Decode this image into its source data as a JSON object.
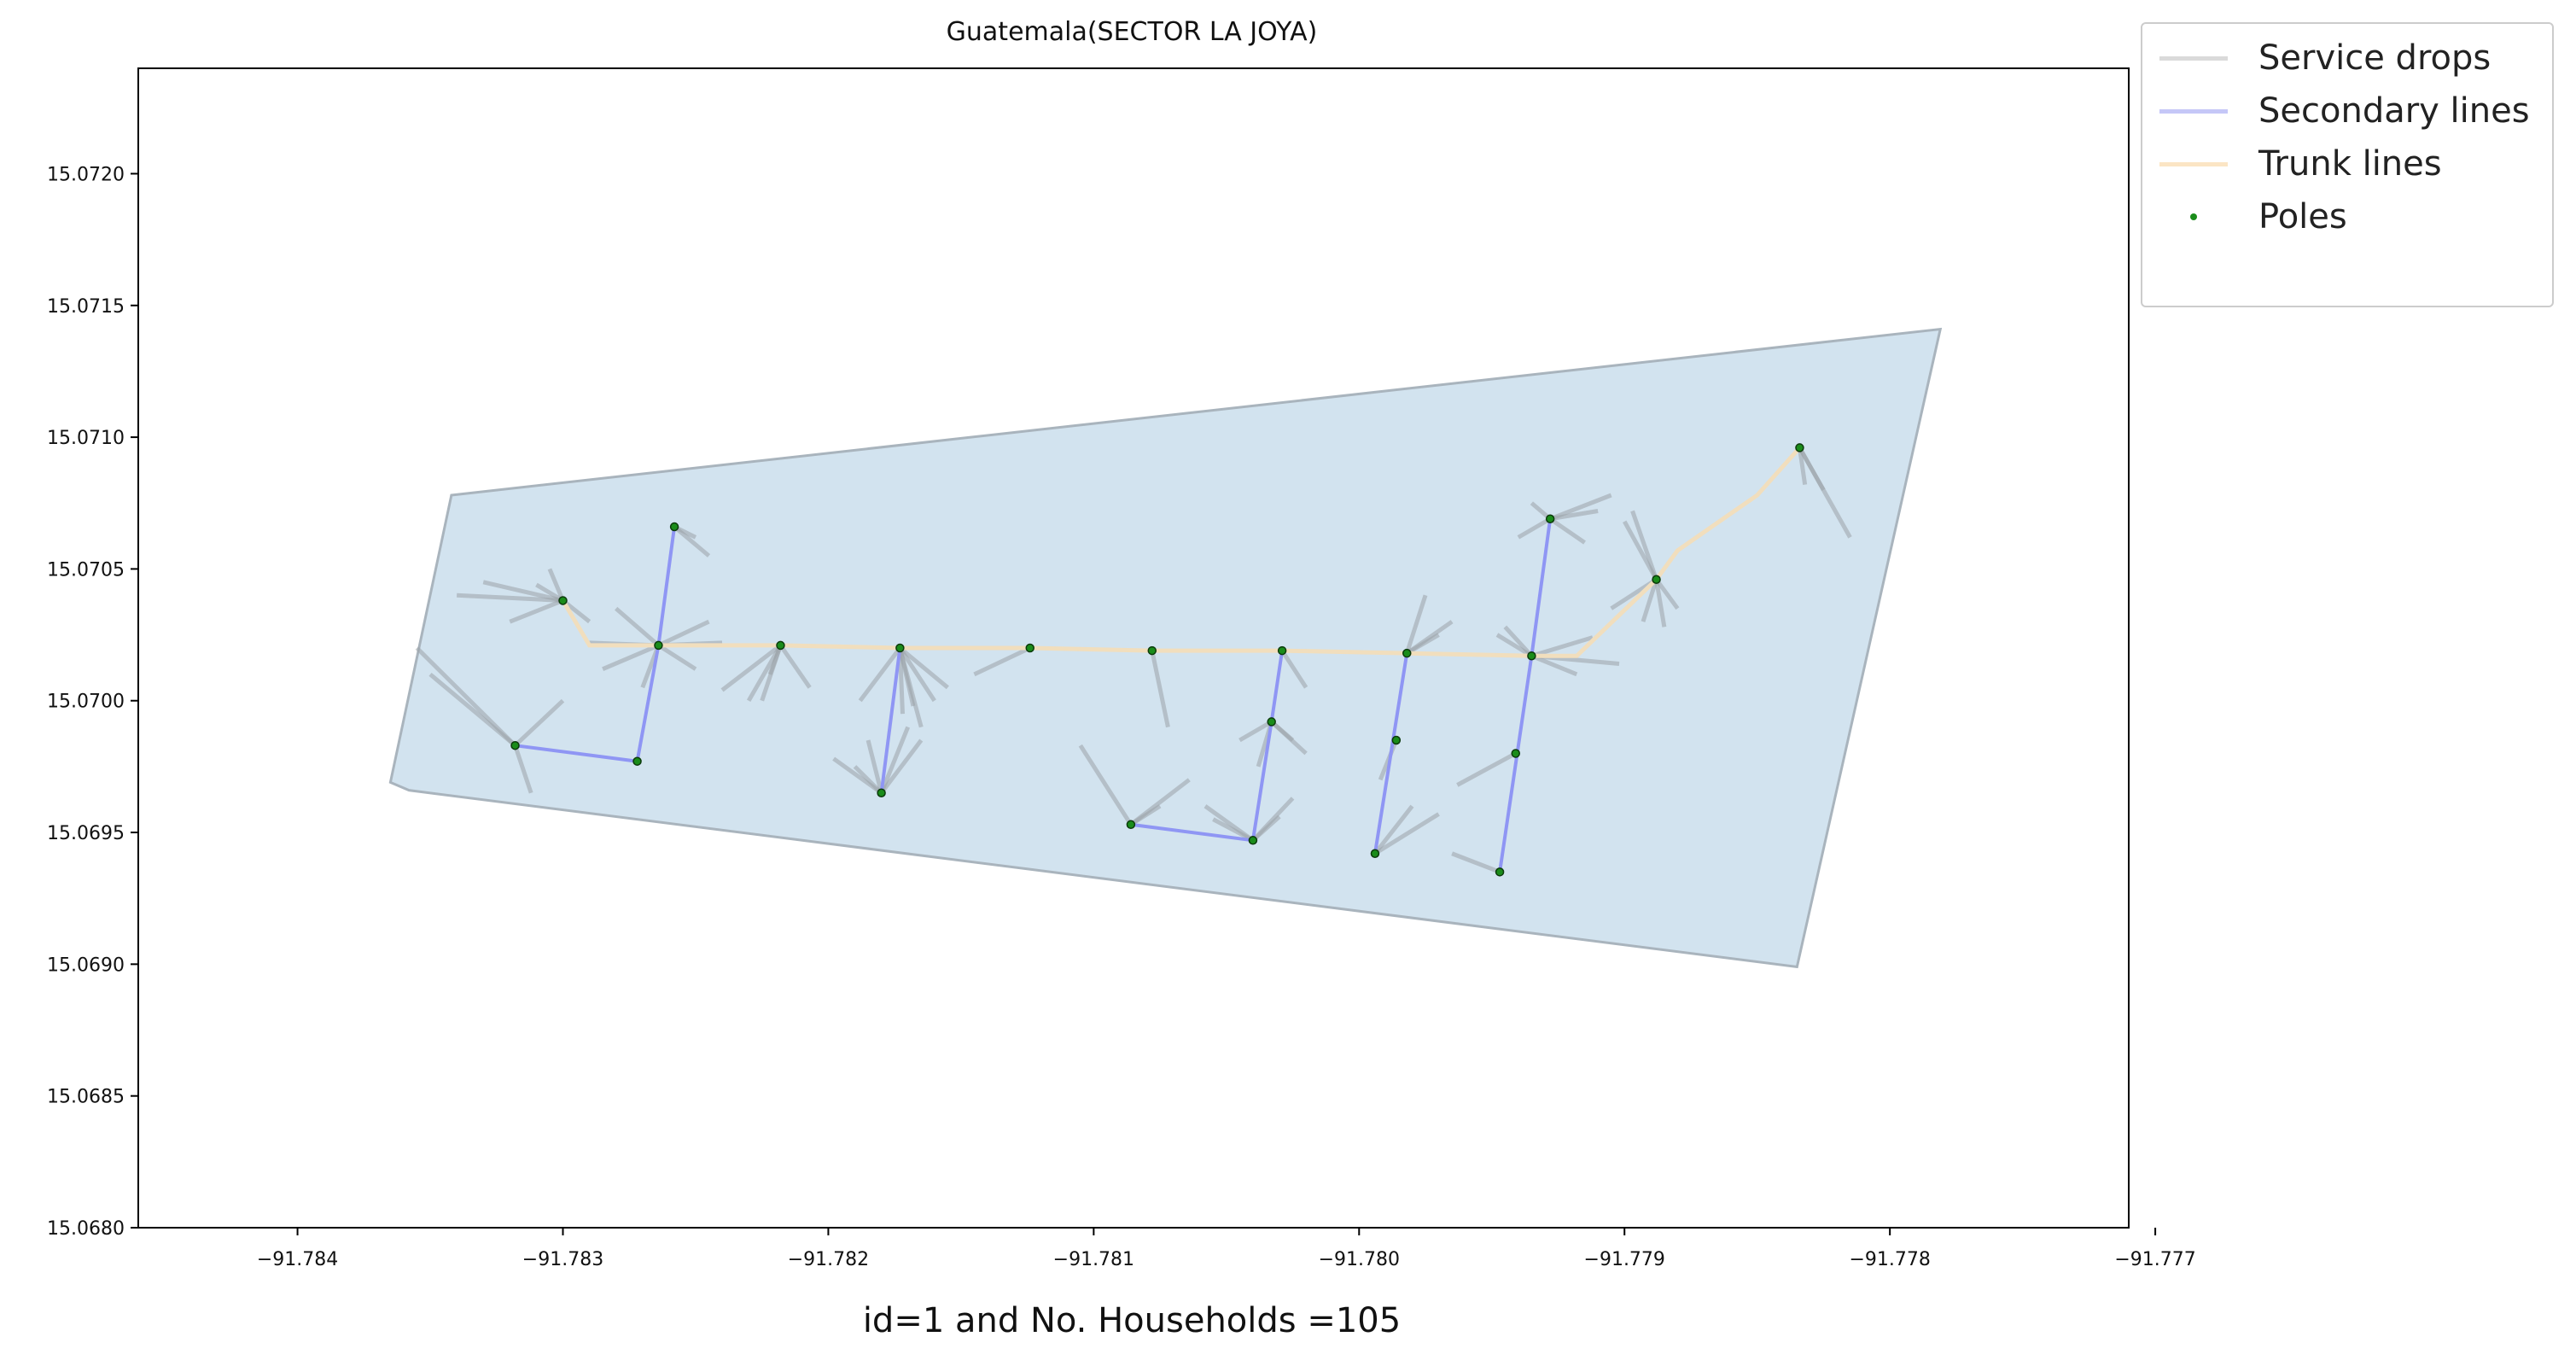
{
  "chart_data": {
    "type": "map-lines",
    "title": "Guatemala(SECTOR LA JOYA)",
    "footer": "id=1 and No. Households =105",
    "xlim": [
      -91.7846,
      -91.7771
    ],
    "ylim": [
      15.068,
      15.0724
    ],
    "x_ticks": [
      -91.784,
      -91.783,
      -91.782,
      -91.781,
      -91.78,
      -91.779,
      -91.778,
      -91.777
    ],
    "x_tick_labels": [
      "−91.784",
      "−91.783",
      "−91.782",
      "−91.781",
      "−91.780",
      "−91.779",
      "−91.778",
      "−91.777"
    ],
    "y_ticks": [
      15.068,
      15.0685,
      15.069,
      15.0695,
      15.07,
      15.0705,
      15.071,
      15.0715,
      15.072
    ],
    "y_tick_labels": [
      "15.0680",
      "15.0685",
      "15.0690",
      "15.0695",
      "15.0700",
      "15.0705",
      "15.0710",
      "15.0715",
      "15.0720"
    ],
    "grid": false,
    "legend_position": "outside-top-right",
    "colors": {
      "area_fill": "#d2e3ef",
      "area_edge": "#a9b4bd",
      "service": "#9ba3a8",
      "secondary": "#8f96f4",
      "trunk": "#f1debd",
      "pole": "#1a8c1a",
      "pole_edge": "#0b3a0b"
    },
    "legend": [
      {
        "label": "Service drops",
        "kind": "line",
        "color": "#d9d9d9"
      },
      {
        "label": "Secondary lines",
        "kind": "line",
        "color": "#c5c7f7"
      },
      {
        "label": "Trunk lines",
        "kind": "line",
        "color": "#fbe5c4"
      },
      {
        "label": "Poles",
        "kind": "point",
        "color": "#1a8c1a"
      }
    ],
    "area_polygon": [
      [
        -91.78342,
        15.07078
      ],
      [
        -91.78365,
        15.06969
      ],
      [
        -91.78358,
        15.06966
      ],
      [
        -91.77835,
        15.06899
      ],
      [
        -91.77781,
        15.07141
      ],
      [
        -91.78342,
        15.07078
      ]
    ],
    "trunk_line": [
      [
        -91.783,
        15.07038
      ],
      [
        -91.7829,
        15.07021
      ],
      [
        -91.78264,
        15.07021
      ],
      [
        -91.78218,
        15.07021
      ],
      [
        -91.78173,
        15.0702
      ],
      [
        -91.78124,
        15.0702
      ],
      [
        -91.78078,
        15.07019
      ],
      [
        -91.78029,
        15.07019
      ],
      [
        -91.77982,
        15.07018
      ],
      [
        -91.77935,
        15.07017
      ],
      [
        -91.77918,
        15.07017
      ],
      [
        -91.77888,
        15.07046
      ],
      [
        -91.7788,
        15.07057
      ],
      [
        -91.7785,
        15.07078
      ],
      [
        -91.77834,
        15.07096
      ]
    ],
    "secondary_lines": [
      [
        [
          -91.78318,
          15.06983
        ],
        [
          -91.78272,
          15.06977
        ],
        [
          -91.78264,
          15.07021
        ],
        [
          -91.78258,
          15.07066
        ]
      ],
      [
        [
          -91.78173,
          15.0702
        ],
        [
          -91.7818,
          15.06965
        ]
      ],
      [
        [
          -91.78086,
          15.06953
        ],
        [
          -91.7804,
          15.06947
        ],
        [
          -91.78033,
          15.06992
        ],
        [
          -91.78029,
          15.07019
        ]
      ],
      [
        [
          -91.77982,
          15.07018
        ],
        [
          -91.77994,
          15.06942
        ]
      ],
      [
        [
          -91.77935,
          15.07017
        ],
        [
          -91.77947,
          15.06935
        ]
      ],
      [
        [
          -91.77935,
          15.07017
        ],
        [
          -91.77928,
          15.07069
        ]
      ]
    ],
    "poles": [
      [
        -91.783,
        15.07038
      ],
      [
        -91.78264,
        15.07021
      ],
      [
        -91.78258,
        15.07066
      ],
      [
        -91.78218,
        15.07021
      ],
      [
        -91.78173,
        15.0702
      ],
      [
        -91.78124,
        15.0702
      ],
      [
        -91.78078,
        15.07019
      ],
      [
        -91.78029,
        15.07019
      ],
      [
        -91.77982,
        15.07018
      ],
      [
        -91.77935,
        15.07017
      ],
      [
        -91.77928,
        15.07069
      ],
      [
        -91.77888,
        15.07046
      ],
      [
        -91.77834,
        15.07096
      ],
      [
        -91.78318,
        15.06983
      ],
      [
        -91.78272,
        15.06977
      ],
      [
        -91.7818,
        15.06965
      ],
      [
        -91.78086,
        15.06953
      ],
      [
        -91.7804,
        15.06947
      ],
      [
        -91.78033,
        15.06992
      ],
      [
        -91.77986,
        15.06985
      ],
      [
        -91.77994,
        15.06942
      ],
      [
        -91.77941,
        15.0698
      ],
      [
        -91.77947,
        15.06935
      ]
    ],
    "service_drops": [
      [
        -91.783,
        15.07038,
        -91.7834,
        15.0704
      ],
      [
        -91.783,
        15.07038,
        -91.7833,
        15.07045
      ],
      [
        -91.783,
        15.07038,
        -91.78305,
        15.0705
      ],
      [
        -91.783,
        15.07038,
        -91.7832,
        15.0703
      ],
      [
        -91.783,
        15.07038,
        -91.7829,
        15.0703
      ],
      [
        -91.783,
        15.07038,
        -91.7831,
        15.07044
      ],
      [
        -91.78264,
        15.07021,
        -91.7828,
        15.07035
      ],
      [
        -91.78264,
        15.07021,
        -91.78245,
        15.0703
      ],
      [
        -91.78264,
        15.07021,
        -91.78285,
        15.07012
      ],
      [
        -91.78264,
        15.07021,
        -91.7824,
        15.07022
      ],
      [
        -91.78264,
        15.07021,
        -91.7827,
        15.07005
      ],
      [
        -91.78264,
        15.07021,
        -91.7825,
        15.07012
      ],
      [
        -91.78264,
        15.07021,
        -91.7829,
        15.07022
      ],
      [
        -91.78258,
        15.07066,
        -91.78245,
        15.07055
      ],
      [
        -91.78258,
        15.07066,
        -91.7825,
        15.07062
      ],
      [
        -91.78218,
        15.07021,
        -91.7824,
        15.07004
      ],
      [
        -91.78218,
        15.07021,
        -91.7823,
        15.07
      ],
      [
        -91.78218,
        15.07021,
        -91.78207,
        15.07005
      ],
      [
        -91.78218,
        15.07021,
        -91.78222,
        15.0701
      ],
      [
        -91.78218,
        15.07021,
        -91.78225,
        15.07
      ],
      [
        -91.78173,
        15.0702,
        -91.78188,
        15.07
      ],
      [
        -91.78173,
        15.0702,
        -91.7816,
        15.07
      ],
      [
        -91.78173,
        15.0702,
        -91.78172,
        15.06995
      ],
      [
        -91.78173,
        15.0702,
        -91.78155,
        15.07005
      ],
      [
        -91.78173,
        15.0702,
        -91.78168,
        15.06998
      ],
      [
        -91.78173,
        15.0702,
        -91.78165,
        15.0699
      ],
      [
        -91.78124,
        15.0702,
        -91.78145,
        15.0701
      ],
      [
        -91.78078,
        15.07019,
        -91.78072,
        15.0699
      ],
      [
        -91.7818,
        15.06965,
        -91.78198,
        15.06978
      ],
      [
        -91.7818,
        15.06965,
        -91.78185,
        15.06985
      ],
      [
        -91.7818,
        15.06965,
        -91.78165,
        15.06985
      ],
      [
        -91.7818,
        15.06965,
        -91.7819,
        15.06975
      ],
      [
        -91.7818,
        15.06965,
        -91.7817,
        15.0699
      ],
      [
        -91.78086,
        15.06953,
        -91.78105,
        15.06983
      ],
      [
        -91.78086,
        15.06953,
        -91.78064,
        15.0697
      ],
      [
        -91.78086,
        15.06953,
        -91.78075,
        15.0696
      ],
      [
        -91.7804,
        15.06947,
        -91.78058,
        15.0696
      ],
      [
        -91.7804,
        15.06947,
        -91.78025,
        15.06963
      ],
      [
        -91.7804,
        15.06947,
        -91.78055,
        15.06955
      ],
      [
        -91.7804,
        15.06947,
        -91.7803,
        15.06956
      ],
      [
        -91.78033,
        15.06992,
        -91.7802,
        15.0698
      ],
      [
        -91.78033,
        15.06992,
        -91.78025,
        15.06985
      ],
      [
        -91.78033,
        15.06992,
        -91.78045,
        15.06985
      ],
      [
        -91.78033,
        15.06992,
        -91.78038,
        15.06975
      ],
      [
        -91.78029,
        15.07019,
        -91.7802,
        15.07005
      ],
      [
        -91.77982,
        15.07018,
        -91.77965,
        15.0703
      ],
      [
        -91.77982,
        15.07018,
        -91.77975,
        15.0704
      ],
      [
        -91.77982,
        15.07018,
        -91.7797,
        15.07025
      ],
      [
        -91.77994,
        15.06942,
        -91.7798,
        15.0696
      ],
      [
        -91.77994,
        15.06942,
        -91.7797,
        15.06957
      ],
      [
        -91.77986,
        15.06985,
        -91.77992,
        15.0697
      ],
      [
        -91.77947,
        15.06935,
        -91.77965,
        15.06942
      ],
      [
        -91.77941,
        15.0698,
        -91.77963,
        15.06968
      ],
      [
        -91.77935,
        15.07017,
        -91.77902,
        15.07014
      ],
      [
        -91.77935,
        15.07017,
        -91.77948,
        15.07025
      ],
      [
        -91.77935,
        15.07017,
        -91.77912,
        15.07024
      ],
      [
        -91.77935,
        15.07017,
        -91.77945,
        15.07028
      ],
      [
        -91.77935,
        15.07017,
        -91.77918,
        15.0701
      ],
      [
        -91.77928,
        15.07069,
        -91.77905,
        15.07078
      ],
      [
        -91.77928,
        15.07069,
        -91.7794,
        15.07062
      ],
      [
        -91.77928,
        15.07069,
        -91.77915,
        15.0706
      ],
      [
        -91.77928,
        15.07069,
        -91.77935,
        15.07075
      ],
      [
        -91.77928,
        15.07069,
        -91.7791,
        15.07072
      ],
      [
        -91.77888,
        15.07046,
        -91.77897,
        15.07072
      ],
      [
        -91.77888,
        15.07046,
        -91.77885,
        15.07028
      ],
      [
        -91.77888,
        15.07046,
        -91.77905,
        15.07035
      ],
      [
        -91.77888,
        15.07046,
        -91.77893,
        15.0703
      ],
      [
        -91.77888,
        15.07046,
        -91.779,
        15.07068
      ],
      [
        -91.77888,
        15.07046,
        -91.7788,
        15.07035
      ],
      [
        -91.77834,
        15.07096,
        -91.77815,
        15.07062
      ],
      [
        -91.77834,
        15.07096,
        -91.77825,
        15.0708
      ],
      [
        -91.77834,
        15.07096,
        -91.77832,
        15.07082
      ],
      [
        -91.78318,
        15.06983,
        -91.78355,
        15.0702
      ],
      [
        -91.78318,
        15.06983,
        -91.7835,
        15.0701
      ],
      [
        -91.78318,
        15.06983,
        -91.783,
        15.07
      ],
      [
        -91.78318,
        15.06983,
        -91.78312,
        15.06965
      ]
    ]
  }
}
